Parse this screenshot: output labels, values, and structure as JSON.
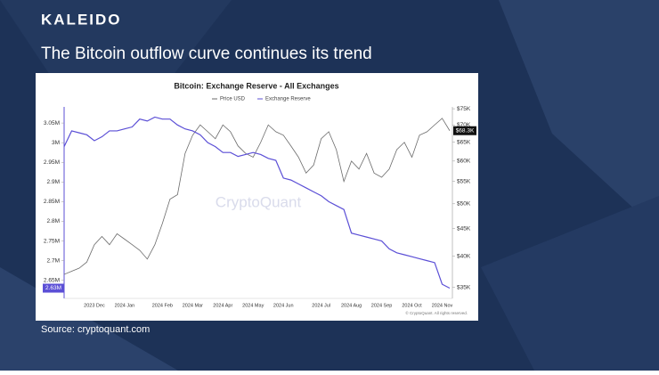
{
  "header": {
    "brand": "KALEIDO",
    "title": "The Bitcoin outflow curve continues its trend",
    "source": "Source: cryptoquant.com"
  },
  "chart_data": {
    "type": "line",
    "title": "Bitcoin: Exchange Reserve - All Exchanges",
    "watermark": "CryptoQuant",
    "copyright": "© CryptoQuant. All rights reserved.",
    "categories": [
      null,
      null,
      null,
      null,
      "2023 Dec",
      null,
      null,
      null,
      "2024 Jan",
      null,
      null,
      null,
      null,
      "2024 Feb",
      null,
      null,
      null,
      "2024 Mar",
      null,
      null,
      null,
      "2024 Apr",
      null,
      null,
      null,
      "2024 May",
      null,
      null,
      null,
      "2024 Jun",
      null,
      null,
      null,
      null,
      "2024 Jul",
      null,
      null,
      null,
      "2024 Aug",
      null,
      null,
      null,
      "2024 Sep",
      null,
      null,
      null,
      "2024 Oct",
      null,
      null,
      null,
      "2024 Nov",
      null
    ],
    "series": [
      {
        "name": "Price USD",
        "color": "#6b6b6b",
        "axis": "y2",
        "last_label": "$68.3K",
        "values": [
          37000,
          37500,
          38000,
          39000,
          42000,
          43500,
          42000,
          44000,
          43000,
          42000,
          41000,
          39500,
          42000,
          46000,
          51000,
          52000,
          62000,
          67000,
          70000,
          68000,
          66000,
          70000,
          68000,
          64000,
          62000,
          61000,
          65000,
          70000,
          68000,
          67000,
          64000,
          61000,
          57000,
          59000,
          66000,
          68000,
          63000,
          55000,
          60000,
          58000,
          62000,
          57000,
          56000,
          58000,
          63000,
          65000,
          61000,
          67000,
          68000,
          70000,
          72000,
          68300
        ]
      },
      {
        "name": "Exchange Reserve",
        "color": "#5b4fd6",
        "axis": "y",
        "last_label": "2.63M",
        "values": [
          2990000,
          3030000,
          3025000,
          3020000,
          3005000,
          3015000,
          3030000,
          3030000,
          3035000,
          3040000,
          3060000,
          3055000,
          3065000,
          3060000,
          3060000,
          3045000,
          3035000,
          3030000,
          3020000,
          3000000,
          2990000,
          2975000,
          2975000,
          2965000,
          2970000,
          2975000,
          2970000,
          2960000,
          2955000,
          2910000,
          2905000,
          2895000,
          2885000,
          2875000,
          2865000,
          2850000,
          2840000,
          2830000,
          2770000,
          2765000,
          2760000,
          2755000,
          2750000,
          2730000,
          2720000,
          2715000,
          2710000,
          2705000,
          2700000,
          2695000,
          2640000,
          2630000
        ]
      }
    ],
    "ylim": [
      2604000,
      3091000
    ],
    "yticks": [
      {
        "value": 2650000,
        "label": "2.65M"
      },
      {
        "value": 2700000,
        "label": "2.7M"
      },
      {
        "value": 2750000,
        "label": "2.75M"
      },
      {
        "value": 2800000,
        "label": "2.8M"
      },
      {
        "value": 2850000,
        "label": "2.85M"
      },
      {
        "value": 2900000,
        "label": "2.9M"
      },
      {
        "value": 2950000,
        "label": "2.95M"
      },
      {
        "value": 3000000,
        "label": "3M"
      },
      {
        "value": 3050000,
        "label": "3.05M"
      }
    ],
    "y2lim": [
      33400,
      75600
    ],
    "y2log": true,
    "y2ticks": [
      {
        "value": 35000,
        "label": "$35K"
      },
      {
        "value": 40000,
        "label": "$40K"
      },
      {
        "value": 45000,
        "label": "$45K"
      },
      {
        "value": 50000,
        "label": "$50K"
      },
      {
        "value": 55000,
        "label": "$55K"
      },
      {
        "value": 60000,
        "label": "$60K"
      },
      {
        "value": 65000,
        "label": "$65K"
      },
      {
        "value": 70000,
        "label": "$70K"
      },
      {
        "value": 75000,
        "label": "$75K"
      }
    ],
    "grid": false
  }
}
